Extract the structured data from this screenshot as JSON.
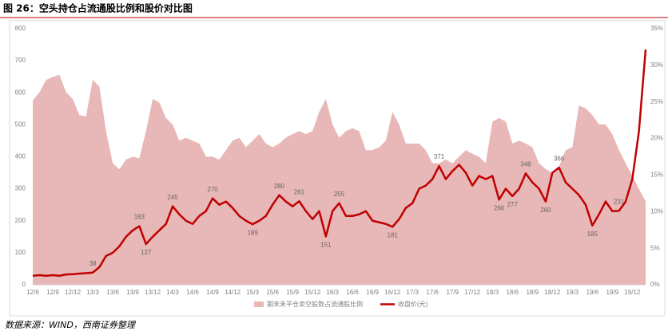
{
  "chart_data": {
    "type": "line",
    "title": "图 26：空头持仓占流通股比例和股价对比图",
    "source": "数据来源：WIND，西南证券整理",
    "categories": [
      "12/6",
      null,
      null,
      "12/9",
      null,
      null,
      "12/12",
      null,
      null,
      "13/3",
      null,
      null,
      "13/6",
      null,
      null,
      "13/9",
      null,
      null,
      "13/12",
      null,
      null,
      "14/3",
      null,
      null,
      "14/6",
      null,
      null,
      "14/9",
      null,
      null,
      "14/12",
      null,
      null,
      "15/3",
      null,
      null,
      "15/6",
      null,
      null,
      "15/9",
      null,
      null,
      "15/12",
      null,
      null,
      "16/3",
      null,
      null,
      "16/6",
      null,
      null,
      "16/9",
      null,
      null,
      "16/12",
      null,
      null,
      "17/3",
      null,
      null,
      "17/6",
      null,
      null,
      "17/9",
      null,
      null,
      "17/12",
      null,
      null,
      "18/3",
      null,
      null,
      "18/6",
      null,
      null,
      "18/9",
      null,
      null,
      "18/12",
      null,
      null,
      "19/3",
      null,
      null,
      "19/6",
      null,
      null,
      "19/9",
      null,
      null,
      "19/12",
      null,
      null
    ],
    "series": [
      {
        "name": "期末未平仓卖空股数占流通股比例",
        "color": "#e8b7b7",
        "style": "area",
        "axis": "y2",
        "values": [
          25.2,
          26.3,
          28.0,
          28.4,
          28.7,
          26.3,
          25.4,
          23.2,
          23.0,
          28.0,
          27.1,
          21.0,
          16.6,
          15.8,
          17.1,
          17.5,
          17.3,
          21.0,
          25.4,
          24.9,
          22.8,
          21.9,
          19.7,
          20.1,
          19.7,
          19.3,
          17.5,
          17.5,
          17.1,
          18.4,
          19.7,
          20.1,
          18.8,
          19.7,
          20.6,
          19.3,
          18.8,
          19.3,
          20.1,
          20.6,
          21.0,
          20.6,
          21.0,
          23.6,
          25.4,
          21.9,
          20.1,
          21.0,
          21.4,
          21.0,
          18.4,
          18.4,
          18.8,
          19.7,
          23.6,
          21.9,
          19.3,
          19.3,
          19.3,
          18.4,
          16.6,
          16.6,
          17.1,
          16.6,
          17.5,
          18.4,
          17.9,
          17.5,
          16.6,
          22.3,
          22.8,
          22.3,
          19.3,
          19.7,
          19.3,
          18.8,
          16.6,
          15.8,
          15.3,
          16.2,
          18.4,
          18.8,
          24.5,
          24.1,
          23.2,
          21.9,
          21.9,
          20.6,
          18.4,
          16.6,
          14.9,
          13.1,
          11.4
        ]
      },
      {
        "name": "收盘价(元)",
        "color": "#c00000",
        "style": "line",
        "values": [
          28,
          30,
          28,
          30,
          28,
          32,
          33,
          35,
          36,
          38,
          55,
          90,
          100,
          120,
          150,
          170,
          183,
          127,
          150,
          170,
          190,
          245,
          220,
          200,
          190,
          215,
          230,
          270,
          250,
          260,
          240,
          215,
          200,
          189,
          200,
          215,
          250,
          280,
          260,
          245,
          261,
          230,
          205,
          230,
          151,
          230,
          255,
          215,
          215,
          220,
          230,
          200,
          195,
          190,
          181,
          205,
          240,
          255,
          300,
          310,
          330,
          371,
          330,
          355,
          375,
          350,
          310,
          340,
          330,
          340,
          266,
          300,
          277,
          300,
          348,
          320,
          300,
          260,
          350,
          366,
          320,
          300,
          280,
          250,
          185,
          220,
          260,
          230,
          231,
          260,
          330,
          480,
          735
        ],
        "value_labels": [
          null,
          null,
          null,
          null,
          null,
          null,
          null,
          null,
          null,
          "38",
          null,
          null,
          null,
          null,
          null,
          null,
          "183",
          "127",
          null,
          null,
          null,
          "245",
          null,
          null,
          null,
          null,
          null,
          "270",
          null,
          null,
          null,
          null,
          null,
          "189",
          null,
          null,
          null,
          "280",
          null,
          null,
          "261",
          null,
          null,
          null,
          "151",
          null,
          "255",
          null,
          null,
          null,
          null,
          null,
          null,
          null,
          "181",
          null,
          null,
          null,
          null,
          null,
          null,
          "371",
          null,
          null,
          null,
          null,
          null,
          null,
          null,
          null,
          "266",
          null,
          "277",
          null,
          "348",
          null,
          null,
          "260",
          null,
          "366",
          null,
          null,
          null,
          null,
          "185",
          null,
          null,
          null,
          "231",
          null,
          null,
          null,
          null
        ]
      }
    ],
    "ylim": [
      0,
      800
    ],
    "yticks": [
      0,
      100,
      200,
      300,
      400,
      500,
      600,
      700,
      800
    ],
    "y2lim": [
      0,
      35
    ],
    "y2ticks": [
      {
        "value": 0,
        "label": "0%"
      },
      {
        "value": 5,
        "label": "5%"
      },
      {
        "value": 10,
        "label": "10%"
      },
      {
        "value": 15,
        "label": "15%"
      },
      {
        "value": 20,
        "label": "20%"
      },
      {
        "value": 25,
        "label": "25%"
      },
      {
        "value": 30,
        "label": "30%"
      },
      {
        "value": 35,
        "label": "35%"
      }
    ],
    "legend": "bottom"
  }
}
